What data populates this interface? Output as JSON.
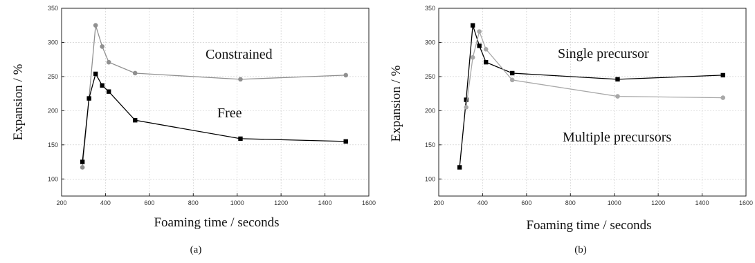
{
  "chart_data": [
    {
      "type": "line",
      "panel_label": "(a)",
      "xlabel": "Foaming time / seconds",
      "ylabel": "Expansion / %",
      "xlim": [
        200,
        1600
      ],
      "ylim": [
        75,
        350
      ],
      "xticks": [
        200,
        400,
        600,
        800,
        1000,
        1200,
        1400,
        1600
      ],
      "yticks": [
        100,
        150,
        200,
        250,
        300,
        350
      ],
      "grid": true,
      "annotations": [
        "Constrained",
        "Free"
      ],
      "series": [
        {
          "color": "#909090",
          "marker": "circle",
          "x": [
            295,
            325,
            355,
            385,
            415,
            535,
            1015,
            1495
          ],
          "y": [
            117,
            218,
            325,
            294,
            271,
            255,
            246,
            252
          ]
        },
        {
          "color": "#000000",
          "marker": "square",
          "x": [
            295,
            325,
            355,
            385,
            415,
            535,
            1015,
            1495
          ],
          "y": [
            125,
            218,
            254,
            237,
            228,
            186,
            159,
            155
          ]
        }
      ]
    },
    {
      "type": "line",
      "panel_label": "(b)",
      "xlabel": "Foaming time / seconds",
      "ylabel": "Expansion / %",
      "xlim": [
        200,
        1600
      ],
      "ylim": [
        75,
        350
      ],
      "xticks": [
        200,
        400,
        600,
        800,
        1000,
        1200,
        1400,
        1600
      ],
      "yticks": [
        100,
        150,
        200,
        250,
        300,
        350
      ],
      "grid": true,
      "annotations": [
        "Single precursor",
        "Multiple precursors"
      ],
      "series": [
        {
          "color": "#000000",
          "marker": "square",
          "x": [
            295,
            325,
            355,
            385,
            415,
            535,
            1015,
            1495
          ],
          "y": [
            117,
            216,
            325,
            295,
            271,
            255,
            246,
            252
          ]
        },
        {
          "color": "#a8a8a8",
          "marker": "circle",
          "x": [
            325,
            355,
            385,
            415,
            535,
            1015,
            1495
          ],
          "y": [
            205,
            278,
            316,
            290,
            245,
            221,
            219
          ]
        }
      ]
    }
  ]
}
